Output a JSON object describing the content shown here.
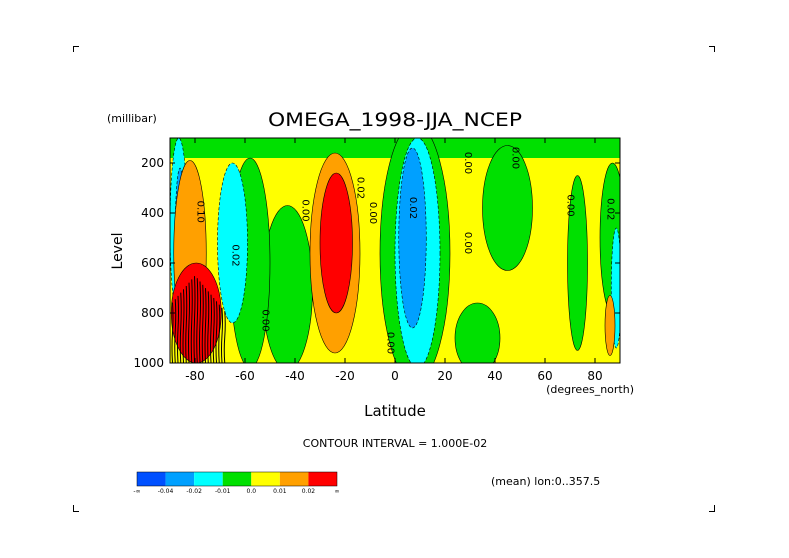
{
  "chart_data": {
    "type": "contour",
    "title": "OMEGA_1998-JJA_NCEP",
    "xlabel": "Latitude",
    "x_units": "(degrees_north)",
    "ylabel": "Level",
    "y_units": "(millibar)",
    "xlim": [
      -90,
      90
    ],
    "ylim": [
      1000,
      100
    ],
    "y_reversed": true,
    "xticks": [
      "-80",
      "-60",
      "-40",
      "-20",
      "0",
      "20",
      "40",
      "60",
      "80"
    ],
    "xtick_values": [
      -80,
      -60,
      -40,
      -20,
      0,
      20,
      40,
      60,
      80
    ],
    "yticks": [
      "200",
      "400",
      "600",
      "800",
      "1000"
    ],
    "ytick_values": [
      200,
      400,
      600,
      800,
      1000
    ],
    "contour_interval_text": "CONTOUR INTERVAL = 1.000E-02",
    "contour_interval": 0.01,
    "mean_text": "(mean) lon:0..357.5",
    "colorbar": {
      "colors": [
        "#0050ff",
        "#00a0ff",
        "#00ffff",
        "#00e000",
        "#ffff00",
        "#ffa000",
        "#ff0000"
      ],
      "labels": [
        "-∞",
        "-0.04",
        "-0.02",
        "-0.01",
        "0.0",
        "0.01",
        "0.02",
        "∞"
      ]
    },
    "contour_labels": [
      {
        "text": "0.00",
        "lon": -37,
        "lev": 390
      },
      {
        "text": "0.00",
        "lon": -53,
        "lev": 830
      },
      {
        "text": "0.02",
        "lon": -65,
        "lev": 570
      },
      {
        "text": "0.10",
        "lon": -79,
        "lev": 395
      },
      {
        "text": "0.02",
        "lon": -15,
        "lev": 300
      },
      {
        "text": "0.00",
        "lon": -10,
        "lev": 400
      },
      {
        "text": "0.00",
        "lon": -3,
        "lev": 920
      },
      {
        "text": "0.02",
        "lon": 6,
        "lev": 380
      },
      {
        "text": "0.00",
        "lon": 28,
        "lev": 200
      },
      {
        "text": "0.00",
        "lon": 47,
        "lev": 180
      },
      {
        "text": "0.00",
        "lon": 28,
        "lev": 520
      },
      {
        "text": "0.00",
        "lon": 69,
        "lev": 370
      },
      {
        "text": "0.02",
        "lon": 85,
        "lev": 385
      }
    ],
    "fields": {
      "red": [
        {
          "kind": "blob",
          "lonc": -23.5,
          "levc": 520,
          "hw": 6.5,
          "hh": 280
        },
        {
          "kind": "blob",
          "lonc": -79.5,
          "levc": 800,
          "hw": 10,
          "hh": 200
        }
      ],
      "orange": [
        {
          "kind": "blob",
          "lonc": -24,
          "levc": 560,
          "hw": 10,
          "hh": 400
        },
        {
          "kind": "blob",
          "lonc": -82,
          "levc": 560,
          "hw": 6.5,
          "hh": 370
        },
        {
          "kind": "blob",
          "lonc": 86,
          "levc": 850,
          "hw": 2,
          "hh": 120
        }
      ],
      "blue": [
        {
          "kind": "blob",
          "lonc": 7,
          "levc": 500,
          "hw": 5.5,
          "hh": 360
        },
        {
          "kind": "blob",
          "lonc": -86,
          "levc": 520,
          "hw": 2,
          "hh": 300
        }
      ],
      "cyan": [
        {
          "kind": "blob",
          "lonc": 9,
          "levc": 560,
          "hw": 9,
          "hh": 460
        },
        {
          "kind": "blob",
          "lonc": -65,
          "levc": 520,
          "hw": 6,
          "hh": 320
        },
        {
          "kind": "blob",
          "lonc": -86.5,
          "levc": 460,
          "hw": 3.5,
          "hh": 360
        },
        {
          "kind": "blob",
          "lonc": 88.5,
          "levc": 700,
          "hw": 2,
          "hh": 240
        }
      ],
      "green": [
        {
          "kind": "rect",
          "lon0": -90,
          "lon1": 90,
          "lev0": 100,
          "lev1": 180
        },
        {
          "kind": "blob",
          "lonc": 8,
          "levc": 560,
          "hw": 14,
          "hh": 520
        },
        {
          "kind": "blob",
          "lonc": -43,
          "levc": 700,
          "hw": 10,
          "hh": 330
        },
        {
          "kind": "blob",
          "lonc": -58,
          "levc": 600,
          "hw": 8,
          "hh": 420
        },
        {
          "kind": "blob",
          "lonc": 45,
          "levc": 380,
          "hw": 10,
          "hh": 250
        },
        {
          "kind": "blob",
          "lonc": 73,
          "levc": 600,
          "hw": 4,
          "hh": 350
        },
        {
          "kind": "blob",
          "lonc": 87,
          "levc": 500,
          "hw": 5,
          "hh": 300
        },
        {
          "kind": "blob",
          "lonc": 33,
          "levc": 900,
          "hw": 9,
          "hh": 140
        }
      ]
    }
  }
}
